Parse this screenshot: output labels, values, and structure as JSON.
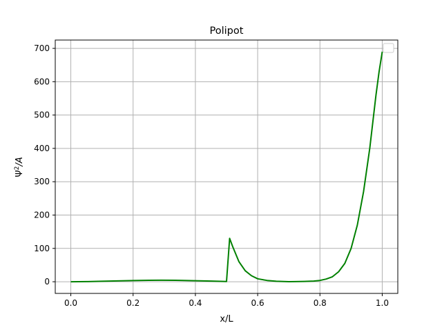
{
  "chart_data": {
    "type": "line",
    "title": "Polipot",
    "xlabel": "x/L",
    "ylabel_base": "Ψ",
    "ylabel_sup": "2",
    "ylabel_tail": "/A",
    "xlim": [
      -0.05,
      1.05
    ],
    "ylim": [
      -35,
      725
    ],
    "xticks": [
      0.0,
      0.2,
      0.4,
      0.6,
      0.8,
      1.0
    ],
    "xtick_labels": [
      "0.0",
      "0.2",
      "0.4",
      "0.6",
      "0.8",
      "1.0"
    ],
    "yticks": [
      0,
      100,
      200,
      300,
      400,
      500,
      600,
      700
    ],
    "ytick_labels": [
      "0",
      "100",
      "200",
      "300",
      "400",
      "500",
      "600",
      "700"
    ],
    "grid": true,
    "legend": "top-right",
    "series": [
      {
        "color": "#008000",
        "x": [
          0.0,
          0.05,
          0.1,
          0.15,
          0.2,
          0.25,
          0.29,
          0.35,
          0.4,
          0.45,
          0.5,
          0.51,
          0.52,
          0.54,
          0.56,
          0.58,
          0.6,
          0.63,
          0.66,
          0.7,
          0.72,
          0.75,
          0.78,
          0.8,
          0.82,
          0.84,
          0.86,
          0.88,
          0.9,
          0.92,
          0.94,
          0.96,
          0.97,
          0.98,
          0.99,
          1.0
        ],
        "y": [
          0,
          0.5,
          1.5,
          2.5,
          3.5,
          4.3,
          4.5,
          4.2,
          3.2,
          2.0,
          0.8,
          130,
          105,
          60,
          33,
          18,
          9,
          4,
          1.5,
          0.3,
          0.5,
          1,
          2,
          4,
          8,
          15,
          30,
          55,
          100,
          170,
          270,
          400,
          480,
          560,
          630,
          690
        ]
      }
    ]
  }
}
